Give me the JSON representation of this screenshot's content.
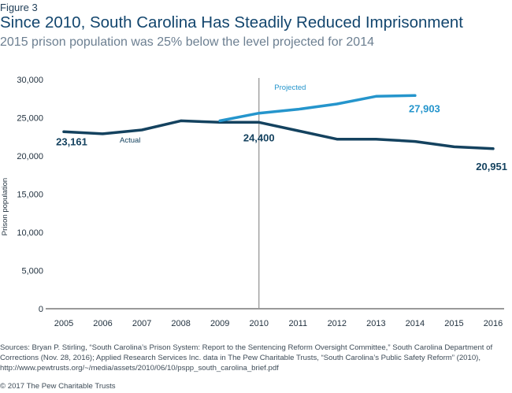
{
  "figure_label": "Figure 3",
  "title": "Since 2010, South Carolina Has Steadily Reduced Imprisonment",
  "subtitle": "2015 prison population was 25% below the level projected for 2014",
  "colors": {
    "actual": "#14425f",
    "projected": "#2595cc",
    "reference_line": "#999999",
    "axis_text": "#1f2f3d"
  },
  "chart_data": {
    "type": "line",
    "xlabel": "",
    "ylabel": "Prison population",
    "ylim": [
      0,
      30000
    ],
    "yticks": [
      0,
      5000,
      10000,
      15000,
      20000,
      25000,
      30000
    ],
    "ytick_labels": [
      "0",
      "5,000",
      "10,000",
      "15,000",
      "20,000",
      "25,000",
      "30,000"
    ],
    "xticks": [
      2005,
      2006,
      2007,
      2008,
      2009,
      2010,
      2011,
      2012,
      2013,
      2014,
      2015,
      2016
    ],
    "xtick_labels": [
      "2005",
      "2006",
      "2007",
      "2008",
      "2009",
      "2010",
      "2011",
      "2012",
      "2013",
      "2014",
      "2015",
      "2016"
    ],
    "xlim": [
      2005,
      2016
    ],
    "grid": false,
    "reference_line_x": 2010,
    "series": [
      {
        "name": "Actual",
        "color": "#14425f",
        "x": [
          2005,
          2006,
          2007,
          2008,
          2009,
          2010,
          2011,
          2012,
          2013,
          2014,
          2015,
          2016
        ],
        "values": [
          23161,
          22900,
          23400,
          24600,
          24400,
          24400,
          23300,
          22200,
          22200,
          21900,
          21200,
          20951
        ]
      },
      {
        "name": "Projected",
        "color": "#2595cc",
        "x": [
          2009,
          2010,
          2011,
          2012,
          2013,
          2014
        ],
        "values": [
          24600,
          25600,
          26100,
          26800,
          27800,
          27903
        ]
      }
    ],
    "annotations": [
      {
        "text": "23,161",
        "series": 0,
        "point": 0
      },
      {
        "text": "24,400",
        "series": 0,
        "point": 5
      },
      {
        "text": "20,951",
        "series": 0,
        "point": 11
      },
      {
        "text": "27,903",
        "series": 1,
        "point": 5
      }
    ]
  },
  "sources": "Sources: Bryan P. Stirling, “South Carolina’s Prison System: Report to the Sentencing Reform Oversight Committee,” South Carolina Department of Corrections (Nov. 28, 2016); Applied Research Services Inc. data in The Pew Charitable Trusts, “South Carolina’s Public Safety Reform” (2010), http://www.pewtrusts.org/~/media/assets/2010/06/10/pspp_south_carolina_brief.pdf",
  "copyright": "© 2017 The Pew Charitable Trusts"
}
